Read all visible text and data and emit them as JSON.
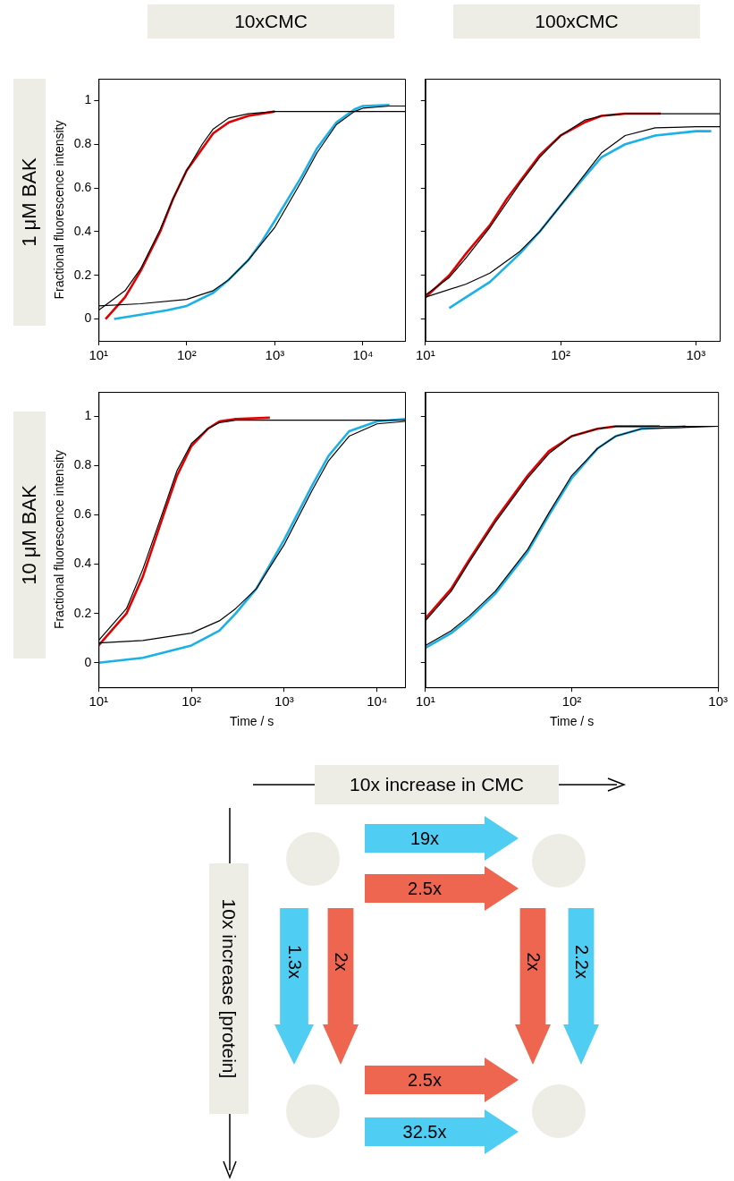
{
  "chart_data": [
    {
      "type": "line",
      "title": "10xCMC",
      "ylabel": "Fractional fluorescence intensity",
      "annotations": [
        "1 μM BAK"
      ],
      "log": "x",
      "xlim": [
        10,
        30000
      ],
      "xticks": [
        {
          "value": 10,
          "label": "10¹"
        },
        {
          "value": 100,
          "label": "10²"
        },
        {
          "value": 1000,
          "label": "10³"
        },
        {
          "value": 10000,
          "label": "10⁴"
        }
      ],
      "ylim": [
        -0.1,
        1.1
      ],
      "yticks": [
        0,
        0.2,
        0.4,
        0.6,
        0.8,
        1
      ],
      "legend": false,
      "series": [
        {
          "color": "#e00000",
          "x": [
            12,
            20,
            30,
            50,
            70,
            100,
            150,
            200,
            300,
            500,
            1000
          ],
          "values": [
            0.0,
            0.1,
            0.22,
            0.4,
            0.55,
            0.68,
            0.78,
            0.85,
            0.9,
            0.93,
            0.95
          ]
        },
        {
          "color": "#1ab0e8",
          "x": [
            15,
            30,
            60,
            100,
            200,
            300,
            500,
            700,
            1000,
            2000,
            3000,
            5000,
            8000,
            10000,
            20000
          ],
          "values": [
            0.0,
            0.02,
            0.04,
            0.06,
            0.12,
            0.18,
            0.27,
            0.35,
            0.45,
            0.65,
            0.78,
            0.9,
            0.96,
            0.975,
            0.98
          ]
        },
        {
          "color": "#000000",
          "x": [
            10,
            20,
            30,
            50,
            70,
            100,
            150,
            200,
            300,
            500,
            1000,
            30000
          ],
          "values": [
            0.04,
            0.13,
            0.23,
            0.41,
            0.55,
            0.68,
            0.8,
            0.87,
            0.92,
            0.94,
            0.95,
            0.95
          ]
        },
        {
          "color": "#000000",
          "x": [
            10,
            30,
            100,
            200,
            300,
            500,
            1000,
            2000,
            3000,
            5000,
            8000,
            10000,
            20000,
            30000
          ],
          "values": [
            0.06,
            0.07,
            0.09,
            0.13,
            0.18,
            0.27,
            0.42,
            0.63,
            0.76,
            0.89,
            0.95,
            0.965,
            0.975,
            0.975
          ]
        }
      ]
    },
    {
      "type": "line",
      "title": "100xCMC",
      "log": "x",
      "xlim": [
        10,
        1500
      ],
      "xticks": [
        {
          "value": 10,
          "label": "10¹"
        },
        {
          "value": 100,
          "label": "10²"
        },
        {
          "value": 1000,
          "label": "10³"
        }
      ],
      "ylim": [
        -0.1,
        1.1
      ],
      "yticks": [
        0,
        0.2,
        0.4,
        0.6,
        0.8,
        1
      ],
      "tick_labels": "x",
      "legend": false,
      "series": [
        {
          "color": "#e00000",
          "x": [
            10,
            15,
            20,
            30,
            40,
            50,
            70,
            100,
            150,
            200,
            300,
            550
          ],
          "values": [
            0.1,
            0.2,
            0.3,
            0.43,
            0.55,
            0.63,
            0.75,
            0.84,
            0.9,
            0.93,
            0.94,
            0.94
          ]
        },
        {
          "color": "#1ab0e8",
          "x": [
            15,
            20,
            30,
            50,
            70,
            100,
            150,
            200,
            300,
            500,
            1000,
            1300
          ],
          "values": [
            0.05,
            0.1,
            0.17,
            0.3,
            0.4,
            0.52,
            0.65,
            0.74,
            0.8,
            0.84,
            0.86,
            0.86
          ]
        },
        {
          "color": "#000000",
          "x": [
            10,
            15,
            20,
            30,
            50,
            70,
            100,
            150,
            200,
            300,
            1500
          ],
          "values": [
            0.11,
            0.19,
            0.28,
            0.42,
            0.62,
            0.74,
            0.84,
            0.91,
            0.93,
            0.94,
            0.94
          ]
        },
        {
          "color": "#000000",
          "x": [
            10,
            20,
            30,
            50,
            70,
            100,
            150,
            200,
            300,
            500,
            1000,
            1500
          ],
          "values": [
            0.1,
            0.16,
            0.21,
            0.31,
            0.4,
            0.52,
            0.66,
            0.76,
            0.84,
            0.875,
            0.88,
            0.88
          ]
        }
      ]
    },
    {
      "type": "line",
      "xlabel": "Time / s",
      "ylabel": "Fractional fluorescence intensity",
      "annotations": [
        "10 μM BAK"
      ],
      "log": "x",
      "xlim": [
        10,
        20000
      ],
      "xticks": [
        {
          "value": 10,
          "label": "10¹"
        },
        {
          "value": 100,
          "label": "10²"
        },
        {
          "value": 1000,
          "label": "10³"
        },
        {
          "value": 10000,
          "label": "10⁴"
        }
      ],
      "ylim": [
        -0.1,
        1.1
      ],
      "yticks": [
        0,
        0.2,
        0.4,
        0.6,
        0.8,
        1
      ],
      "legend": false,
      "series": [
        {
          "color": "#e00000",
          "x": [
            10,
            20,
            30,
            50,
            70,
            100,
            150,
            200,
            300,
            700
          ],
          "values": [
            0.07,
            0.2,
            0.35,
            0.6,
            0.76,
            0.88,
            0.95,
            0.98,
            0.99,
            0.995
          ]
        },
        {
          "color": "#1ab0e8",
          "x": [
            10,
            30,
            100,
            200,
            300,
            500,
            1000,
            2000,
            3000,
            5000,
            10000,
            20000
          ],
          "values": [
            0.0,
            0.02,
            0.07,
            0.13,
            0.2,
            0.3,
            0.5,
            0.72,
            0.84,
            0.94,
            0.98,
            0.99
          ]
        },
        {
          "color": "#000000",
          "x": [
            10,
            20,
            30,
            50,
            70,
            100,
            150,
            200,
            300,
            20000
          ],
          "values": [
            0.09,
            0.22,
            0.38,
            0.62,
            0.78,
            0.89,
            0.95,
            0.975,
            0.985,
            0.985
          ]
        },
        {
          "color": "#000000",
          "x": [
            10,
            30,
            100,
            200,
            300,
            500,
            1000,
            2000,
            3000,
            5000,
            10000,
            20000
          ],
          "values": [
            0.08,
            0.09,
            0.12,
            0.17,
            0.22,
            0.3,
            0.48,
            0.7,
            0.82,
            0.92,
            0.97,
            0.98
          ]
        }
      ]
    },
    {
      "type": "line",
      "xlabel": "Time / s",
      "log": "x",
      "xlim": [
        10,
        1000
      ],
      "xticks": [
        {
          "value": 10,
          "label": "10¹"
        },
        {
          "value": 100,
          "label": "10²"
        },
        {
          "value": 1000,
          "label": "10³"
        }
      ],
      "ylim": [
        -0.1,
        1.1
      ],
      "yticks": [
        0,
        0.2,
        0.4,
        0.6,
        0.8,
        1
      ],
      "tick_labels": "x",
      "legend": false,
      "series": [
        {
          "color": "#e00000",
          "x": [
            10,
            15,
            20,
            30,
            50,
            70,
            100,
            150,
            200,
            400
          ],
          "values": [
            0.18,
            0.3,
            0.42,
            0.58,
            0.76,
            0.86,
            0.92,
            0.95,
            0.96,
            0.96
          ]
        },
        {
          "color": "#1ab0e8",
          "x": [
            10,
            15,
            20,
            30,
            50,
            70,
            100,
            150,
            200,
            300,
            600
          ],
          "values": [
            0.06,
            0.12,
            0.18,
            0.28,
            0.45,
            0.6,
            0.75,
            0.87,
            0.92,
            0.95,
            0.96
          ]
        },
        {
          "color": "#000000",
          "x": [
            10,
            15,
            20,
            30,
            50,
            70,
            100,
            150,
            200,
            400,
            1000
          ],
          "values": [
            0.17,
            0.29,
            0.41,
            0.57,
            0.75,
            0.85,
            0.92,
            0.95,
            0.96,
            0.96,
            0.96
          ]
        },
        {
          "color": "#000000",
          "x": [
            10,
            15,
            20,
            30,
            50,
            70,
            100,
            150,
            200,
            300,
            1000
          ],
          "values": [
            0.07,
            0.13,
            0.19,
            0.29,
            0.46,
            0.61,
            0.76,
            0.87,
            0.92,
            0.95,
            0.96
          ]
        }
      ]
    },
    {
      "type": "other",
      "annotations": [
        "10x increase in CMC",
        "10x increase [protein]",
        "19x",
        "2.5x",
        "1.3x",
        "2x",
        "2x",
        "2.2x",
        "2.5x",
        "32.5x"
      ]
    }
  ]
}
